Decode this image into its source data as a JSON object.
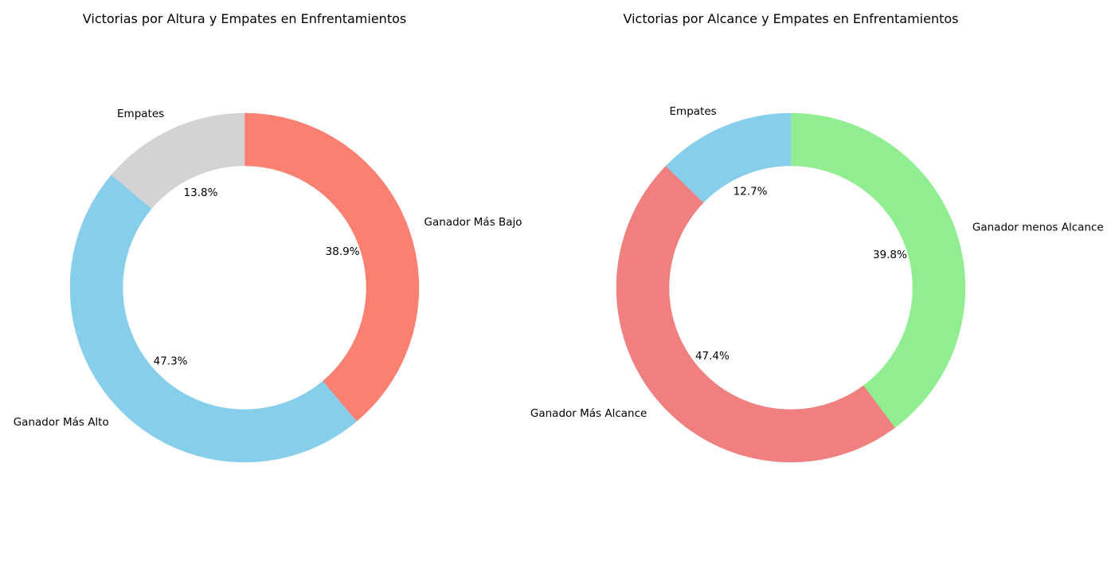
{
  "chart_data": [
    {
      "type": "pie",
      "donut": true,
      "title": "Victorias por Altura y Empates en Enfrentamientos",
      "start_angle_deg": 90,
      "direction": "clockwise",
      "slices": [
        {
          "label": "Ganador Más Bajo",
          "value": 38.9,
          "pct_label": "38.9%",
          "color": "#FA8072"
        },
        {
          "label": "Ganador Más Alto",
          "value": 47.3,
          "pct_label": "47.3%",
          "color": "#87CEEB"
        },
        {
          "label": "Empates",
          "value": 13.8,
          "pct_label": "13.8%",
          "color": "#D3D3D3"
        }
      ]
    },
    {
      "type": "pie",
      "donut": true,
      "title": "Victorias por Alcance y Empates en Enfrentamientos",
      "start_angle_deg": 90,
      "direction": "clockwise",
      "slices": [
        {
          "label": "Ganador menos Alcance",
          "value": 39.8,
          "pct_label": "39.8%",
          "color": "#90EE90"
        },
        {
          "label": "Ganador Más Alcance",
          "value": 47.4,
          "pct_label": "47.4%",
          "color": "#F08080"
        },
        {
          "label": "Empates",
          "value": 12.7,
          "pct_label": "12.7%",
          "color": "#87CEEB"
        }
      ]
    }
  ]
}
